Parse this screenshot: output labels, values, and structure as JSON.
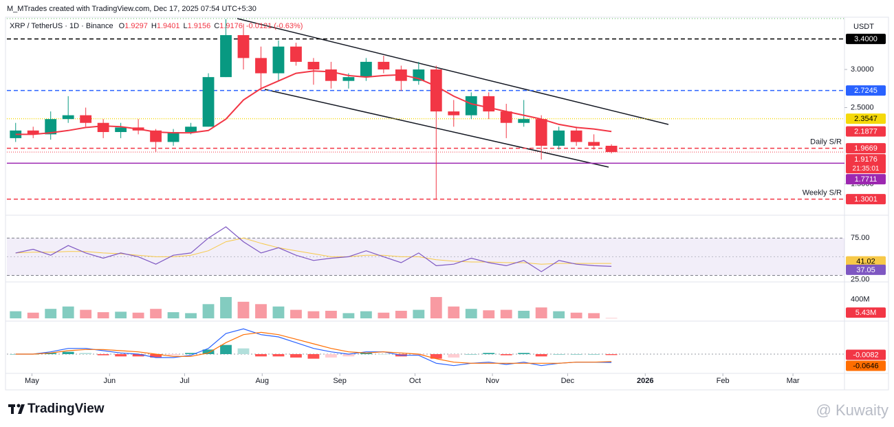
{
  "header": {
    "credit": "M_MTrades created with TradingView.com, Dec 17, 2025 07:54 UTC+5:30"
  },
  "chart_data": {
    "type": "candlestick",
    "title": "XRP / TetherUS · 1D · Binance",
    "ohlc": [
      [
        "O",
        "1.9297"
      ],
      [
        "H",
        "1.9401"
      ],
      [
        "L",
        "1.9156"
      ],
      [
        "C",
        "1.9176"
      ],
      [
        "",
        "-0.0121 (-0.63%)"
      ]
    ],
    "currency": "USDT",
    "xlim": [
      0,
      47.8
    ],
    "xticks": [
      {
        "value": 1.43,
        "label": "May"
      },
      {
        "value": 5.86,
        "label": "Jun"
      },
      {
        "value": 10.14,
        "label": "Jul"
      },
      {
        "value": 14.57,
        "label": "Aug"
      },
      {
        "value": 19,
        "label": "Sep"
      },
      {
        "value": 23.29,
        "label": "Oct"
      },
      {
        "value": 27.71,
        "label": "Nov"
      },
      {
        "value": 32,
        "label": "Dec"
      },
      {
        "value": 36.43,
        "label": "2026"
      },
      {
        "value": 40.86,
        "label": "Feb"
      },
      {
        "value": 44.86,
        "label": "Mar"
      }
    ],
    "ylim": [
      1.117,
      3.685
    ],
    "yticks": [
      {
        "value": 1.5,
        "label": "1.5000"
      },
      {
        "value": 2.5,
        "label": "2.5000"
      },
      {
        "value": 3,
        "label": "3.0000"
      }
    ],
    "up_color": "#089981",
    "down_color": "#f23645",
    "candles": {
      "open": [
        2.1,
        2.2,
        2.15,
        2.35,
        2.4,
        2.3,
        2.18,
        2.24,
        2.2,
        2.05,
        2.18,
        2.25,
        2.9,
        3.45,
        3.15,
        2.95,
        3.3,
        3.1,
        3.0,
        2.85,
        2.9,
        3.1,
        3.0,
        2.85,
        3.0,
        2.45,
        2.4,
        2.65,
        2.45,
        2.3,
        2.35,
        2.0,
        2.2,
        2.05,
        2.0
      ],
      "high": [
        2.3,
        2.25,
        2.45,
        2.65,
        2.5,
        2.35,
        2.3,
        2.35,
        2.22,
        2.22,
        2.3,
        2.95,
        3.66,
        3.6,
        3.3,
        3.38,
        3.35,
        3.15,
        3.1,
        2.95,
        3.15,
        3.18,
        3.05,
        3.1,
        3.05,
        2.6,
        2.7,
        2.7,
        2.55,
        2.6,
        2.4,
        2.25,
        2.25,
        2.15,
        2.02
      ],
      "low": [
        2.05,
        2.1,
        2.08,
        2.3,
        2.25,
        2.1,
        2.1,
        2.15,
        1.92,
        2.0,
        2.15,
        2.25,
        2.9,
        3.0,
        2.72,
        2.85,
        3.05,
        2.8,
        2.75,
        2.75,
        2.85,
        2.95,
        2.72,
        2.8,
        1.3,
        2.25,
        2.35,
        2.35,
        2.1,
        2.25,
        1.82,
        1.95,
        2.0,
        1.95,
        1.9
      ],
      "close": [
        2.2,
        2.15,
        2.35,
        2.4,
        2.3,
        2.18,
        2.24,
        2.2,
        2.05,
        2.18,
        2.25,
        2.9,
        3.45,
        3.15,
        2.95,
        3.3,
        3.1,
        3.0,
        2.85,
        2.9,
        3.1,
        3.0,
        2.85,
        3.0,
        2.45,
        2.4,
        2.65,
        2.45,
        2.3,
        2.35,
        2.0,
        2.2,
        2.05,
        2.0,
        1.9176
      ]
    },
    "ma": {
      "color": "#f23645",
      "values": [
        2.15,
        2.15,
        2.17,
        2.2,
        2.24,
        2.26,
        2.25,
        2.22,
        2.18,
        2.17,
        2.17,
        2.2,
        2.35,
        2.6,
        2.75,
        2.85,
        2.95,
        2.98,
        2.97,
        2.92,
        2.9,
        2.92,
        2.93,
        2.88,
        2.78,
        2.65,
        2.55,
        2.5,
        2.45,
        2.4,
        2.35,
        2.28,
        2.24,
        2.22,
        2.1877
      ],
      "last_label": "2.1877"
    },
    "levels": [
      {
        "value": 3.4,
        "label": "3.4000",
        "color": "#000000",
        "text_color": "#ffffff",
        "style": "dashed"
      },
      {
        "value": 2.7245,
        "label": "2.7245",
        "color": "#2962ff",
        "text_color": "#ffffff",
        "style": "dashed"
      },
      {
        "value": 2.3547,
        "label": "2.3547",
        "color": "#f5d90a",
        "text_color": "#000000",
        "style": "dotted"
      },
      {
        "value": 1.9669,
        "label": "1.9669",
        "color": "#f23645",
        "text_color": "#ffffff",
        "style": "dashed",
        "note": "Daily S/R"
      },
      {
        "value": 1.7711,
        "label": "1.7711",
        "color": "#9c27b0",
        "text_color": "#ffffff",
        "style": "solid"
      },
      {
        "value": 1.3001,
        "label": "1.3001",
        "color": "#f23645",
        "text_color": "#ffffff",
        "style": "dashed",
        "note": "Weekly S/R"
      }
    ],
    "last_price": {
      "value": 1.9176,
      "label": "1.9176",
      "countdown": "21:35:01",
      "color": "#f23645"
    },
    "rsi": {
      "ylim": [
        19,
        101
      ],
      "yticks": [
        {
          "value": 25,
          "label": "25.00"
        },
        {
          "value": 75,
          "label": "75.00"
        }
      ],
      "color": "#7e57c2",
      "ma_color": "#f7c948",
      "values": [
        55,
        60,
        52,
        65,
        55,
        48,
        55,
        50,
        40,
        52,
        55,
        75,
        90,
        70,
        55,
        62,
        52,
        45,
        48,
        50,
        58,
        50,
        42,
        55,
        38,
        40,
        48,
        42,
        38,
        45,
        30,
        45,
        40,
        38,
        37.05
      ],
      "ma_values": [
        55,
        56,
        56,
        57,
        57,
        55,
        54,
        52,
        50,
        50,
        52,
        58,
        70,
        75,
        68,
        62,
        58,
        54,
        50,
        50,
        52,
        52,
        50,
        50,
        46,
        44,
        43,
        43,
        42,
        42,
        40,
        41,
        41,
        41,
        41.02
      ],
      "value_labels": {
        "last": "37.05",
        "ma_last": "41.02"
      }
    },
    "volume": {
      "ylim": [
        0,
        696
      ],
      "yticks": [
        {
          "value": 400,
          "label": "400M"
        }
      ],
      "values": [
        150,
        120,
        200,
        250,
        180,
        130,
        140,
        120,
        200,
        130,
        110,
        300,
        450,
        350,
        300,
        250,
        180,
        150,
        160,
        110,
        150,
        120,
        160,
        180,
        450,
        250,
        200,
        170,
        180,
        160,
        230,
        150,
        120,
        110,
        5.43
      ],
      "last_label": "5.43M"
    },
    "macd": {
      "ylim": [
        -0.15,
        0.27
      ],
      "macd_color": "#2962ff",
      "signal_color": "#ff6d00",
      "macd": [
        0,
        0,
        0.02,
        0.05,
        0.05,
        0.03,
        0.01,
        0,
        -0.03,
        -0.03,
        -0.01,
        0.05,
        0.18,
        0.22,
        0.17,
        0.15,
        0.1,
        0.05,
        0.02,
        0,
        0.02,
        0.02,
        -0.01,
        -0.01,
        -0.08,
        -0.1,
        -0.08,
        -0.07,
        -0.09,
        -0.07,
        -0.1,
        -0.08,
        -0.07,
        -0.07,
        -0.0728
      ],
      "signal": [
        0,
        0,
        0.01,
        0.03,
        0.04,
        0.04,
        0.03,
        0.02,
        0,
        -0.02,
        -0.02,
        0.01,
        0.1,
        0.17,
        0.19,
        0.17,
        0.13,
        0.09,
        0.05,
        0.02,
        0.01,
        0.02,
        0.01,
        0,
        -0.04,
        -0.07,
        -0.08,
        -0.08,
        -0.08,
        -0.08,
        -0.08,
        -0.08,
        -0.07,
        -0.07,
        -0.0646
      ],
      "histogram": [
        0,
        0,
        0.01,
        0.02,
        0.01,
        -0.01,
        -0.02,
        -0.02,
        -0.03,
        -0.01,
        0.01,
        0.04,
        0.08,
        0.05,
        -0.02,
        -0.02,
        -0.03,
        -0.04,
        -0.03,
        -0.02,
        0.01,
        0,
        -0.02,
        -0.01,
        -0.04,
        -0.03,
        0,
        0.01,
        -0.01,
        0.01,
        -0.02,
        0,
        0,
        0,
        -0.0082
      ],
      "value_labels": {
        "histogram_last": "-0.0082",
        "signal_last": "-0.0646"
      }
    }
  },
  "footer": {
    "logo": "TradingView",
    "watermark": "@ Kuwaity"
  }
}
